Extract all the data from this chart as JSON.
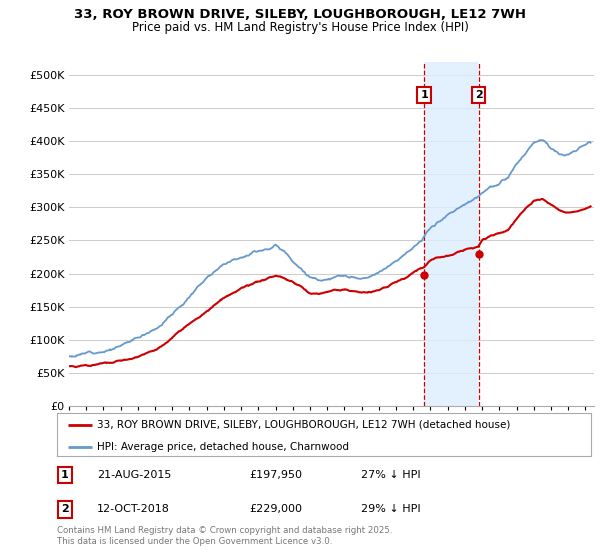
{
  "title1": "33, ROY BROWN DRIVE, SILEBY, LOUGHBOROUGH, LE12 7WH",
  "title2": "Price paid vs. HM Land Registry's House Price Index (HPI)",
  "xlim_start": 1995.0,
  "xlim_end": 2025.5,
  "ylim": [
    0,
    520000
  ],
  "yticks": [
    0,
    50000,
    100000,
    150000,
    200000,
    250000,
    300000,
    350000,
    400000,
    450000,
    500000
  ],
  "ytick_labels": [
    "£0",
    "£50K",
    "£100K",
    "£150K",
    "£200K",
    "£250K",
    "£300K",
    "£350K",
    "£400K",
    "£450K",
    "£500K"
  ],
  "transaction1_x": 2015.638,
  "transaction1_y": 197950,
  "transaction2_x": 2018.79,
  "transaction2_y": 229000,
  "transaction1_date": "21-AUG-2015",
  "transaction1_price": "£197,950",
  "transaction1_hpi": "27% ↓ HPI",
  "transaction2_date": "12-OCT-2018",
  "transaction2_price": "£229,000",
  "transaction2_hpi": "29% ↓ HPI",
  "legend_property": "33, ROY BROWN DRIVE, SILEBY, LOUGHBOROUGH, LE12 7WH (detached house)",
  "legend_hpi": "HPI: Average price, detached house, Charnwood",
  "footer": "Contains HM Land Registry data © Crown copyright and database right 2025.\nThis data is licensed under the Open Government Licence v3.0.",
  "property_color": "#cc0000",
  "hpi_color": "#6699cc",
  "shade_color": "#ddeeff",
  "vline_color": "#cc0000",
  "background_color": "#ffffff",
  "grid_color": "#cccccc",
  "hpi_keypoints_x": [
    1995,
    1996,
    1997,
    1998,
    1999,
    2000,
    2001,
    2002,
    2003,
    2004,
    2005,
    2006,
    2007,
    2007.5,
    2008,
    2008.5,
    2009,
    2009.5,
    2010,
    2010.5,
    2011,
    2011.5,
    2012,
    2012.5,
    2013,
    2013.5,
    2014,
    2014.5,
    2015,
    2015.5,
    2016,
    2016.5,
    2017,
    2017.5,
    2018,
    2018.5,
    2019,
    2019.5,
    2020,
    2020.5,
    2021,
    2021.5,
    2022,
    2022.5,
    2023,
    2023.5,
    2024,
    2024.5,
    2025,
    2025.3
  ],
  "hpi_keypoints_y": [
    75000,
    80000,
    88000,
    96000,
    108000,
    125000,
    148000,
    175000,
    205000,
    230000,
    245000,
    256000,
    265000,
    258000,
    245000,
    235000,
    222000,
    218000,
    220000,
    222000,
    222000,
    218000,
    215000,
    215000,
    220000,
    228000,
    240000,
    252000,
    262000,
    272000,
    288000,
    300000,
    310000,
    318000,
    325000,
    335000,
    345000,
    355000,
    358000,
    365000,
    385000,
    400000,
    415000,
    418000,
    408000,
    400000,
    400000,
    405000,
    415000,
    420000
  ],
  "prop_keypoints_x": [
    1995,
    1996,
    1997,
    1998,
    1999,
    2000,
    2001,
    2002,
    2003,
    2004,
    2005,
    2006,
    2007,
    2007.5,
    2008,
    2008.5,
    2009,
    2009.5,
    2010,
    2010.5,
    2011,
    2011.5,
    2012,
    2012.5,
    2013,
    2013.5,
    2014,
    2014.5,
    2015,
    2015.638,
    2016,
    2016.5,
    2017,
    2017.5,
    2018,
    2018.79,
    2019,
    2019.5,
    2020,
    2020.5,
    2021,
    2021.5,
    2022,
    2022.5,
    2023,
    2023.5,
    2024,
    2024.5,
    2025,
    2025.3
  ],
  "prop_keypoints_y": [
    60000,
    63000,
    65000,
    67000,
    72000,
    82000,
    100000,
    118000,
    140000,
    160000,
    170000,
    178000,
    185000,
    182000,
    175000,
    168000,
    158000,
    155000,
    158000,
    160000,
    162000,
    160000,
    158000,
    158000,
    162000,
    168000,
    175000,
    182000,
    192000,
    197950,
    208000,
    215000,
    218000,
    222000,
    226000,
    229000,
    238000,
    245000,
    248000,
    252000,
    268000,
    285000,
    298000,
    300000,
    292000,
    285000,
    284000,
    286000,
    290000,
    292000
  ]
}
